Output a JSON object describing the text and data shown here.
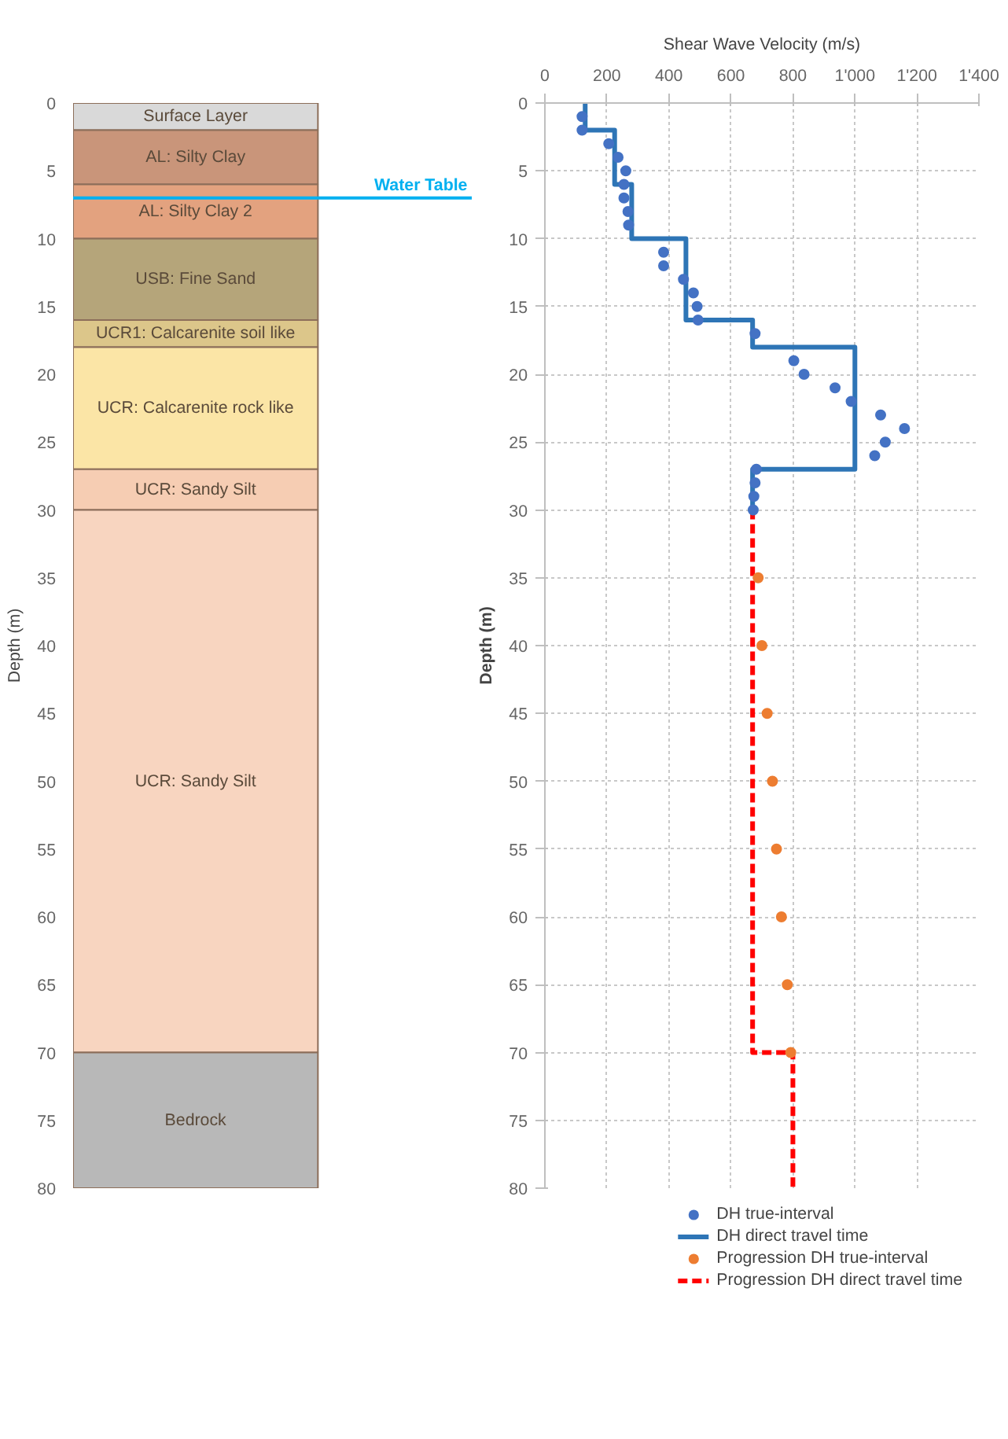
{
  "chart_data": [
    {
      "type": "bar",
      "stacked": true,
      "categories": [
        null
      ],
      "ylabel": "Depth (m)",
      "ylim": [
        80,
        0
      ],
      "yticks": [
        0,
        5,
        10,
        15,
        20,
        25,
        30,
        35,
        40,
        45,
        50,
        55,
        60,
        65,
        70,
        75,
        80
      ],
      "series": [
        {
          "name": "Surface Layer",
          "color": "#d9d9d9",
          "values": [
            2
          ]
        },
        {
          "name": "AL: Silty Clay",
          "color": "#c9957a",
          "values": [
            4
          ]
        },
        {
          "name": "AL: Silty Clay 2",
          "color": "#e3a27f",
          "values": [
            4
          ]
        },
        {
          "name": "USB: Fine Sand",
          "color": "#b5a57a",
          "values": [
            6
          ]
        },
        {
          "name": "UCR1: Calcarenite soil like",
          "color": "#dcc68a",
          "values": [
            2
          ]
        },
        {
          "name": "UCR: Calcarenite rock like",
          "color": "#fbe5a6",
          "values": [
            9
          ]
        },
        {
          "name": "UCR: Sandy Silt",
          "color": "#f6cdb3",
          "values": [
            3
          ]
        },
        {
          "name": "UCR: Sandy Silt",
          "color": "#f8d5c0",
          "values": [
            40
          ]
        },
        {
          "name": "Bedrock",
          "color": "#b8b8b8",
          "values": [
            10
          ]
        }
      ],
      "ref_lines": [
        {
          "axis": "y",
          "value": 7,
          "label": "Water Table",
          "color": "#00b0f0"
        }
      ]
    },
    {
      "type": "scatter",
      "xlabel": "Shear Wave Velocity (m/s)",
      "ylabel": "Depth (m)",
      "xlim": [
        0,
        1400
      ],
      "xticks": [
        0,
        200,
        400,
        600,
        800,
        {
          "value": 1000,
          "label": "1'000"
        },
        {
          "value": 1200,
          "label": "1'200"
        },
        {
          "value": 1400,
          "label": "1'400"
        }
      ],
      "ylim": [
        80,
        0
      ],
      "yticks": [
        0,
        5,
        10,
        15,
        20,
        25,
        30,
        35,
        40,
        45,
        50,
        55,
        60,
        65,
        70,
        75,
        80
      ],
      "grid": true,
      "legend": "bottom",
      "series": [
        {
          "type": "scatter",
          "name": "DH true-interval",
          "color": "#4472c4",
          "marker": "circle",
          "x": [
            120,
            120,
            206,
            236,
            261,
            255,
            255,
            268,
            270,
            383,
            383,
            447,
            479,
            491,
            494,
            678,
            803,
            836,
            936,
            988,
            1083,
            1160,
            1098,
            1064,
            682,
            678,
            674,
            672
          ],
          "values": [
            1,
            2,
            3,
            4,
            5,
            6,
            7,
            8,
            9,
            11,
            12,
            13,
            14,
            15,
            16,
            17,
            19,
            20,
            21,
            22,
            23,
            24,
            25,
            26,
            27,
            28,
            29,
            30
          ]
        },
        {
          "type": "line",
          "name": "DH direct travel time",
          "color": "#2e75b6",
          "line_style": "solid",
          "x": [
            130,
            130,
            225,
            225,
            280,
            280,
            455,
            455,
            670,
            670,
            1000,
            1000,
            670,
            670
          ],
          "values": [
            0,
            2,
            2,
            6,
            6,
            10,
            10,
            16,
            16,
            18,
            18,
            27,
            27,
            30
          ]
        },
        {
          "type": "scatter",
          "name": "Progression DH true-interval",
          "color": "#ed7d31",
          "marker": "circle",
          "x": [
            688,
            700,
            717,
            734,
            747,
            763,
            782,
            793
          ],
          "values": [
            35,
            40,
            45,
            50,
            55,
            60,
            65,
            70
          ]
        },
        {
          "type": "line",
          "name": "Progression DH direct travel time",
          "color": "#ff0000",
          "line_style": "dashed",
          "x": [
            670,
            670,
            800,
            800
          ],
          "values": [
            30,
            70,
            70,
            80
          ]
        }
      ]
    }
  ]
}
